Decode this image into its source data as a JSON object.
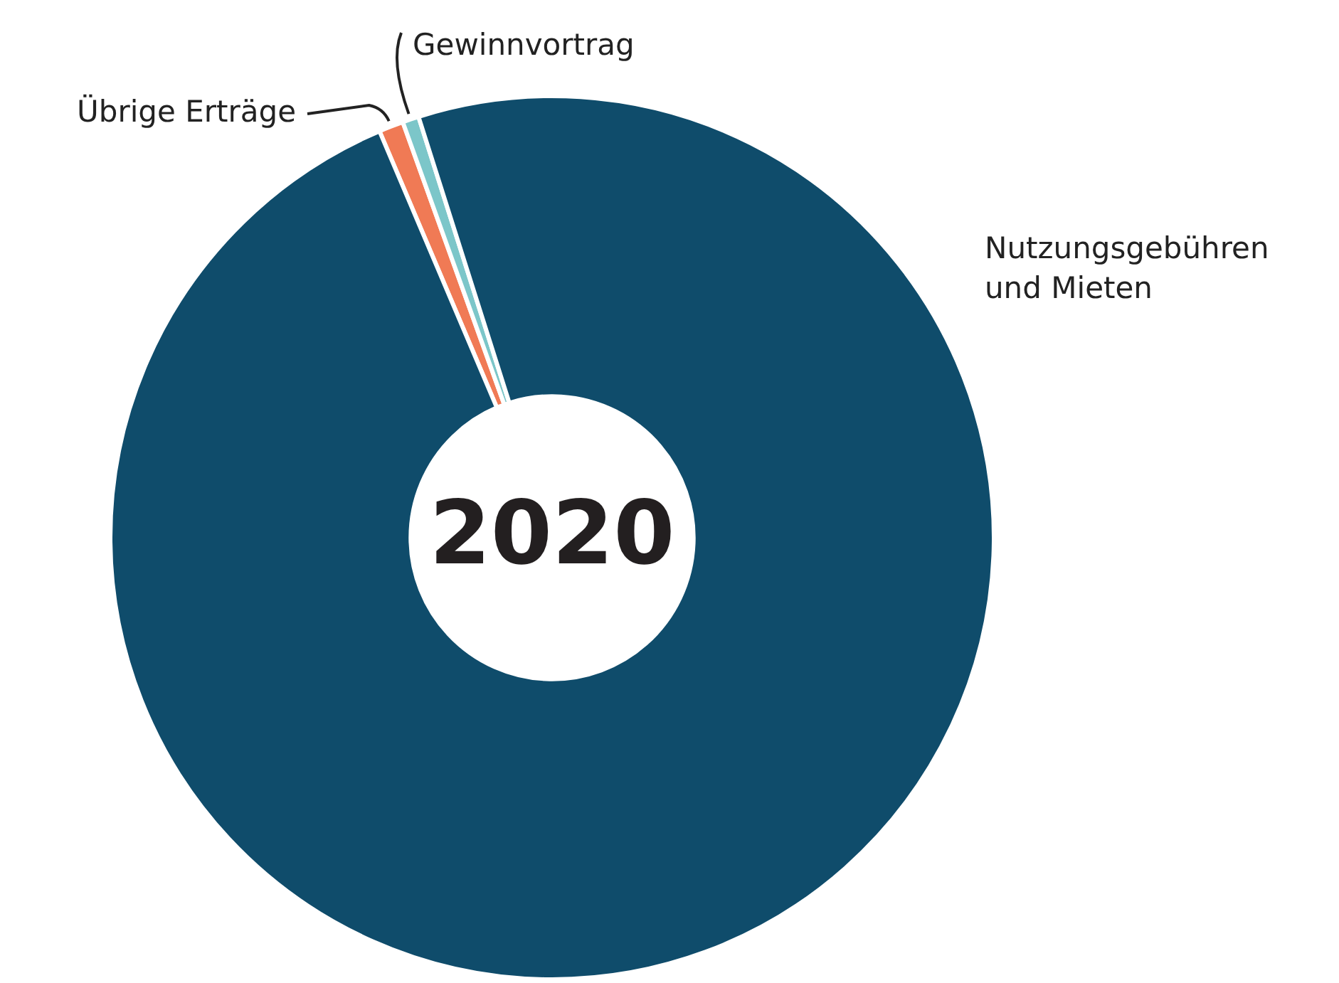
{
  "chart_data": {
    "type": "donut",
    "title": "2020",
    "categories": [
      "Übrige Erträge",
      "Gewinnvortrag",
      "Nutzungsgebühren und Mieten"
    ],
    "values": [
      0.9,
      0.6,
      98.5
    ],
    "colors": [
      "#f07a55",
      "#7cc6c9",
      "#0f4c6b"
    ],
    "legend": false
  }
}
